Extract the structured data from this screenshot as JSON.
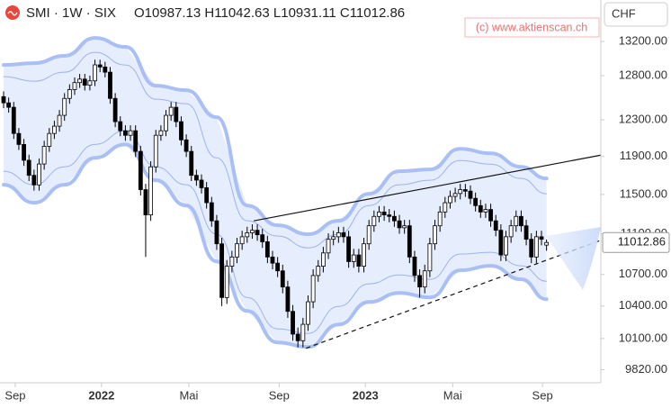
{
  "header": {
    "symbol": "SMI · 1W · SIX",
    "o_label": "O",
    "h_label": "H",
    "l_label": "L",
    "c_label": "C",
    "currency": "CHF",
    "watermark": "(c) www.aktienscan.ch"
  },
  "chart_data": {
    "type": "candlestick",
    "log_scale": true,
    "xlim": [
      -0.71,
      117.7
    ],
    "ylim": [
      9705,
      13703
    ],
    "xticks": [
      {
        "value": 2.3,
        "label": "Sep"
      },
      {
        "value": 19.3,
        "label": "2022"
      },
      {
        "value": 36.5,
        "label": "Mai"
      },
      {
        "value": 54.3,
        "label": "Sep"
      },
      {
        "value": 71.3,
        "label": "2023"
      },
      {
        "value": 88.5,
        "label": "Mai"
      },
      {
        "value": 106.2,
        "label": "Sep"
      }
    ],
    "yticks": [
      {
        "value": 13200,
        "label": "13200.00"
      },
      {
        "value": 12800,
        "label": "12800.00"
      },
      {
        "value": 12300,
        "label": "12300.00"
      },
      {
        "value": 11900,
        "label": "11900.00"
      },
      {
        "value": 11500,
        "label": "11500.00"
      },
      {
        "value": 11100,
        "label": "11100.00"
      },
      {
        "value": 10700,
        "label": "10700.00"
      },
      {
        "value": 10400,
        "label": "10400.00"
      },
      {
        "value": 10100,
        "label": "10100.00"
      },
      {
        "value": 9820,
        "label": "9820.00"
      }
    ],
    "up_color": "#ffffff",
    "down_color": "#000000",
    "open": [
      12560,
      12490,
      12440,
      12150,
      12030,
      11860,
      11700,
      11600,
      11820,
      12010,
      12150,
      12230,
      12350,
      12540,
      12640,
      12720,
      12760,
      12690,
      12740,
      12925,
      12900,
      12840,
      12540,
      12280,
      12180,
      12130,
      12180,
      11955,
      11550,
      11290,
      11790,
      12130,
      12180,
      12350,
      12440,
      12280,
      12080,
      11955,
      11700,
      11650,
      11570,
      11415,
      11230,
      11000,
      10480,
      10780,
      10870,
      11000,
      11070,
      11110,
      11135,
      11090,
      11020,
      10870,
      10810,
      10735,
      10580,
      10350,
      10140,
      10080,
      10230,
      10440,
      10690,
      10780,
      10910,
      11045,
      11070,
      11110,
      11070,
      10825,
      10890,
      10780,
      11000,
      11180,
      11275,
      11320,
      11290,
      11275,
      11230,
      11160,
      11180,
      10870,
      10690,
      10580,
      10735,
      11000,
      11180,
      11320,
      11415,
      11480,
      11510,
      11550,
      11535,
      11460,
      11385,
      11320,
      11345,
      11230,
      11135,
      10890,
      11070,
      11180,
      11275,
      11180,
      11045,
      10870,
      11070,
      10987.13
    ],
    "high": [
      12620,
      12550,
      12500,
      12210,
      12090,
      11920,
      11760,
      11880,
      12070,
      12210,
      12290,
      12410,
      12600,
      12700,
      12780,
      12820,
      12820,
      12800,
      12985,
      12985,
      12960,
      12900,
      12600,
      12340,
      12240,
      12240,
      12240,
      12015,
      11610,
      11850,
      12190,
      12240,
      12410,
      12500,
      12500,
      12340,
      12140,
      12015,
      11760,
      11710,
      11630,
      11475,
      11290,
      11060,
      10840,
      10930,
      11060,
      11130,
      11170,
      11195,
      11195,
      11150,
      11080,
      10930,
      10870,
      10795,
      10640,
      10410,
      10200,
      10290,
      10500,
      10750,
      10840,
      10970,
      11105,
      11130,
      11170,
      11170,
      11130,
      10950,
      10950,
      11060,
      11240,
      11335,
      11380,
      11380,
      11350,
      11335,
      11290,
      11240,
      11240,
      10930,
      10750,
      10795,
      11060,
      11240,
      11380,
      11475,
      11540,
      11570,
      11610,
      11610,
      11595,
      11520,
      11445,
      11405,
      11405,
      11290,
      11195,
      11130,
      11240,
      11335,
      11335,
      11240,
      11105,
      11130,
      11130,
      11042.63
    ],
    "low": [
      12430,
      12380,
      12090,
      11970,
      11800,
      11640,
      11540,
      11540,
      11760,
      11950,
      12090,
      12170,
      12290,
      12480,
      12580,
      12660,
      12630,
      12630,
      12680,
      12840,
      12780,
      12480,
      12220,
      12120,
      12070,
      12070,
      11895,
      11490,
      10870,
      11230,
      11730,
      12070,
      12120,
      12290,
      12220,
      12020,
      11895,
      11640,
      11590,
      11510,
      11355,
      11170,
      10940,
      10400,
      10420,
      10720,
      10810,
      10940,
      11010,
      11050,
      11030,
      10960,
      10810,
      10750,
      10675,
      10520,
      10290,
      10080,
      10020,
      10020,
      10170,
      10380,
      10630,
      10720,
      10850,
      10985,
      11010,
      11010,
      10765,
      10765,
      10720,
      10720,
      10940,
      11120,
      11215,
      11230,
      11215,
      11170,
      11100,
      11100,
      10810,
      10630,
      10480,
      10520,
      10675,
      10940,
      11120,
      11260,
      11355,
      11420,
      11450,
      11475,
      11400,
      11325,
      11260,
      11260,
      11170,
      11075,
      10830,
      10830,
      11010,
      11120,
      11120,
      10985,
      10810,
      10810,
      10985,
      10931.11
    ],
    "close": [
      12490,
      12440,
      12150,
      12030,
      11860,
      11700,
      11600,
      11820,
      12010,
      12150,
      12230,
      12350,
      12540,
      12640,
      12720,
      12760,
      12690,
      12740,
      12925,
      12900,
      12840,
      12540,
      12280,
      12180,
      12130,
      12180,
      11955,
      11550,
      11290,
      11790,
      12130,
      12180,
      12350,
      12440,
      12280,
      12080,
      11955,
      11700,
      11650,
      11570,
      11415,
      11230,
      11000,
      10480,
      10780,
      10870,
      11000,
      11070,
      11110,
      11135,
      11090,
      11020,
      10870,
      10810,
      10735,
      10580,
      10350,
      10140,
      10080,
      10230,
      10440,
      10690,
      10780,
      10910,
      11045,
      11070,
      11110,
      11070,
      10825,
      10890,
      10780,
      11000,
      11180,
      11275,
      11320,
      11290,
      11275,
      11230,
      11160,
      11180,
      10870,
      10690,
      10580,
      10735,
      11000,
      11180,
      11320,
      11415,
      11480,
      11510,
      11550,
      11535,
      11460,
      11385,
      11320,
      11345,
      11230,
      11135,
      10890,
      11070,
      11180,
      11275,
      11180,
      11045,
      10870,
      11070,
      11045,
      11012.86
    ],
    "bands": {
      "outer_color": "#a9bff5",
      "inner_color": "#9db3ee",
      "fill": "#e6edfd",
      "x": [
        0,
        6,
        12,
        18,
        24,
        30,
        36,
        42,
        48,
        54,
        60,
        66,
        72,
        78,
        84,
        90,
        96,
        102,
        107
      ],
      "outer_upper": [
        12924,
        12945,
        13030,
        13243,
        13136,
        12685,
        12633,
        12329,
        11386,
        11185,
        11095,
        11231,
        11507,
        11743,
        11762,
        11983,
        11934,
        11790,
        11667
      ],
      "outer_lower": [
        11601,
        11414,
        11601,
        11886,
        12031,
        11648,
        11386,
        10827,
        10354,
        10064,
        10023,
        10228,
        10438,
        10524,
        10481,
        10740,
        10784,
        10653,
        10464
      ],
      "inner_upper": [
        12788,
        12736,
        12840,
        13072,
        12924,
        12531,
        12480,
        11886,
        11231,
        11077,
        10960,
        11095,
        11386,
        11601,
        11648,
        11857,
        11818,
        11667,
        11507
      ],
      "inner_lower": [
        11743,
        11601,
        11790,
        12031,
        12180,
        11790,
        11601,
        11095,
        10481,
        10188,
        10146,
        10396,
        10610,
        10696,
        10653,
        10898,
        10916,
        10784,
        10635
      ]
    },
    "trendlines": [
      {
        "x": [
          49.3,
          117.7
        ],
        "y": [
          11230,
          11915
        ],
        "style": "solid"
      },
      {
        "x": [
          59.6,
          117.7
        ],
        "y": [
          10012,
          11035
        ],
        "style": "dashed"
      }
    ]
  }
}
